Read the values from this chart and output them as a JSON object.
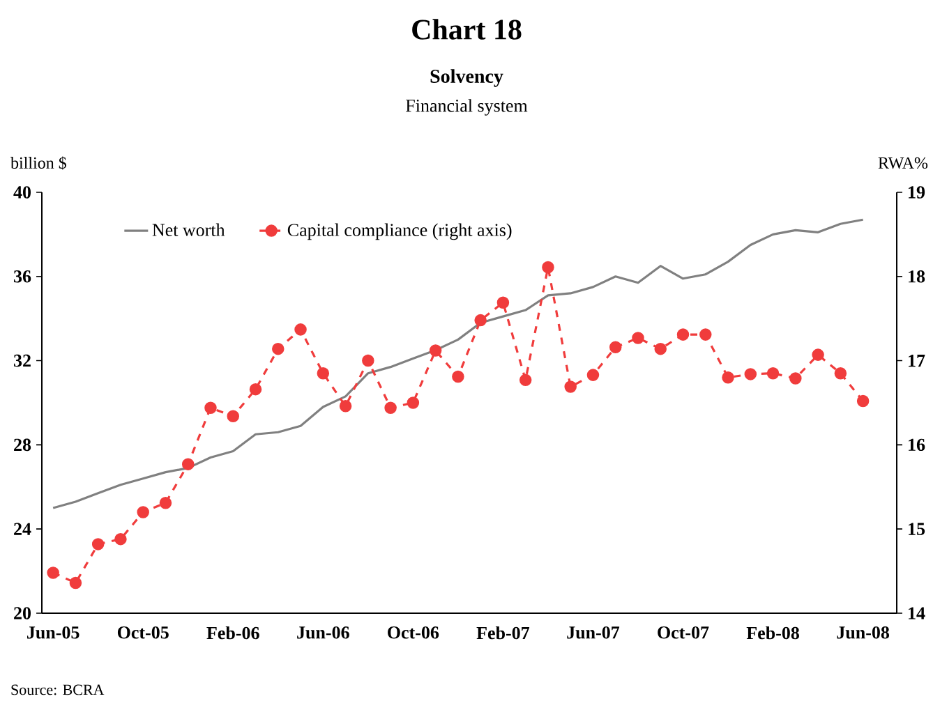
{
  "chart_data": {
    "type": "line",
    "title": "Chart 18",
    "subtitle": "Solvency",
    "annotations": [
      "Financial system",
      "Source: BCRA"
    ],
    "ylabel": "billion $",
    "y2label": "RWA%",
    "categories": [
      "Jun-05",
      null,
      null,
      null,
      "Oct-05",
      null,
      null,
      null,
      "Feb-06",
      null,
      null,
      null,
      "Jun-06",
      null,
      null,
      null,
      "Oct-06",
      null,
      null,
      null,
      "Feb-07",
      null,
      null,
      null,
      "Jun-07",
      null,
      null,
      null,
      "Oct-07",
      null,
      null,
      null,
      "Feb-08",
      null,
      null,
      null,
      "Jun-08"
    ],
    "series": [
      {
        "name": "Net worth",
        "color": "#808080",
        "axis": "y",
        "marker": "none",
        "line_style": "solid",
        "values": [
          25.0,
          25.3,
          25.7,
          26.1,
          26.4,
          26.7,
          26.9,
          27.4,
          27.7,
          28.5,
          28.6,
          28.9,
          29.8,
          30.3,
          31.4,
          31.7,
          32.1,
          32.5,
          33.0,
          33.8,
          34.1,
          34.4,
          35.1,
          35.2,
          35.5,
          36.0,
          35.7,
          36.5,
          35.9,
          36.1,
          36.7,
          37.5,
          38.0,
          38.2,
          38.1,
          38.5,
          38.7
        ]
      },
      {
        "name": "Capital compliance (right axis)",
        "color": "#f03c3c",
        "axis": "y2",
        "marker": "circle",
        "line_style": "dashed",
        "values": [
          14.48,
          14.36,
          14.82,
          14.88,
          15.2,
          15.31,
          15.77,
          16.44,
          16.34,
          16.66,
          17.14,
          17.37,
          16.85,
          16.46,
          17.0,
          16.44,
          16.5,
          17.12,
          16.81,
          17.48,
          17.69,
          16.77,
          18.11,
          16.69,
          16.83,
          17.16,
          17.27,
          17.14,
          17.31,
          17.31,
          16.8,
          16.84,
          16.85,
          16.79,
          17.07,
          16.85,
          16.52
        ]
      }
    ],
    "ylim": [
      20,
      40
    ],
    "yticks": [
      20,
      24,
      28,
      32,
      36,
      40
    ],
    "y2lim": [
      14,
      19
    ],
    "y2ticks": [
      14,
      15,
      16,
      17,
      18,
      19
    ],
    "legend": "top left"
  }
}
